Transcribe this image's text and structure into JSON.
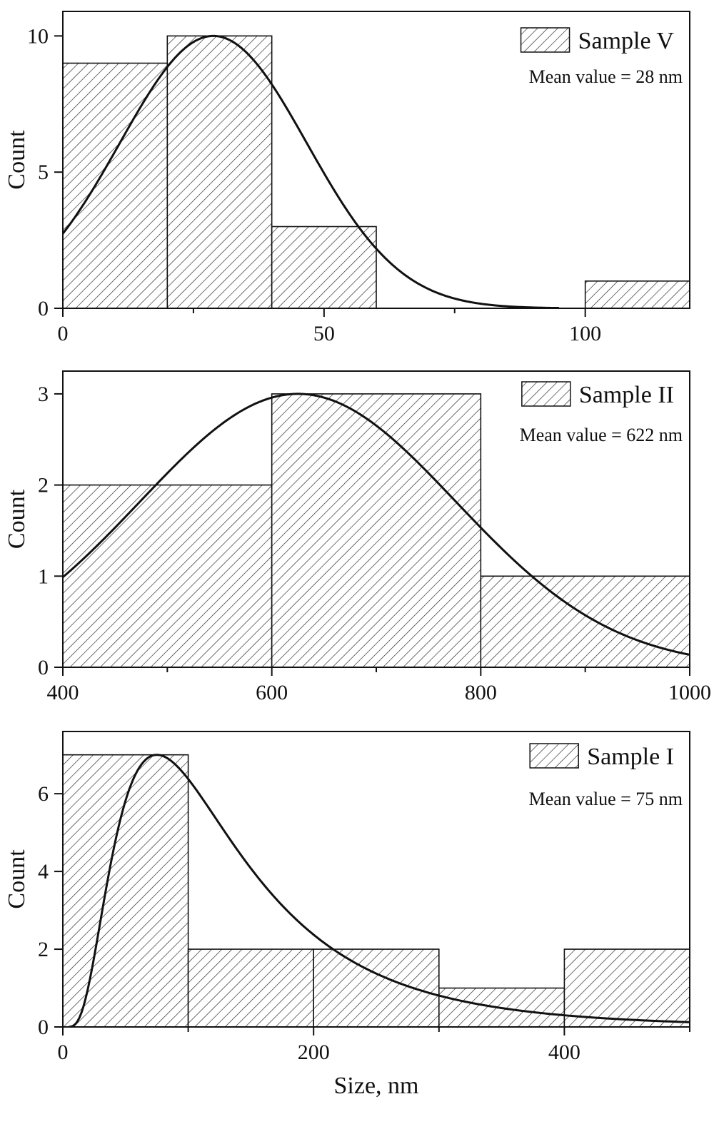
{
  "chart_data": [
    {
      "type": "bar",
      "name": "sample-v",
      "legend": "Sample V",
      "annotation": "Mean value = 28 nm",
      "ylabel": "Count",
      "xlabel": "",
      "xlim": [
        0,
        120
      ],
      "ylim": [
        0,
        10.9
      ],
      "xticks": [
        0,
        50,
        100
      ],
      "xtick_labels": [
        "0",
        "50",
        "100"
      ],
      "xminor": [
        25,
        75
      ],
      "yticks": [
        0,
        5,
        10
      ],
      "ytick_labels": [
        "0",
        "5",
        "10"
      ],
      "bins": [
        {
          "x0": 0,
          "x1": 20,
          "count": 9
        },
        {
          "x0": 20,
          "x1": 40,
          "count": 10
        },
        {
          "x0": 40,
          "x1": 60,
          "count": 3
        },
        {
          "x0": 100,
          "x1": 120,
          "count": 1
        }
      ],
      "fit": {
        "type": "gaussian",
        "peak_x": 28.8,
        "peak_y": 10,
        "sigma": 17.9,
        "x_range": [
          0,
          95
        ]
      }
    },
    {
      "type": "bar",
      "name": "sample-ii",
      "legend": "Sample II",
      "annotation": "Mean value = 622 nm",
      "ylabel": "Count",
      "xlabel": "",
      "xlim": [
        400,
        1000
      ],
      "ylim": [
        0,
        3.25
      ],
      "xticks": [
        400,
        600,
        800,
        1000
      ],
      "xtick_labels": [
        "400",
        "600",
        "800",
        "1000"
      ],
      "xminor": [
        500,
        700,
        900
      ],
      "yticks": [
        0,
        1,
        2,
        3
      ],
      "ytick_labels": [
        "0",
        "1",
        "2",
        "3"
      ],
      "bins": [
        {
          "x0": 400,
          "x1": 600,
          "count": 2
        },
        {
          "x0": 600,
          "x1": 800,
          "count": 3
        },
        {
          "x0": 800,
          "x1": 1000,
          "count": 1
        }
      ],
      "fit": {
        "type": "gaussian",
        "peak_x": 625,
        "peak_y": 3,
        "sigma": 151,
        "x_range": [
          400,
          1000
        ]
      }
    },
    {
      "type": "bar",
      "name": "sample-i",
      "legend": "Sample I",
      "annotation": "Mean value = 75 nm",
      "ylabel": "Count",
      "xlabel": "Size, nm",
      "xlim": [
        0,
        500
      ],
      "ylim": [
        0,
        7.6
      ],
      "xticks": [
        0,
        200,
        400
      ],
      "xtick_labels": [
        "0",
        "200",
        "400"
      ],
      "xminor": [
        100,
        300,
        500
      ],
      "yticks": [
        0,
        2,
        4,
        6
      ],
      "ytick_labels": [
        "0",
        "2",
        "4",
        "6"
      ],
      "bins": [
        {
          "x0": 0,
          "x1": 100,
          "count": 7
        },
        {
          "x0": 100,
          "x1": 200,
          "count": 2
        },
        {
          "x0": 200,
          "x1": 300,
          "count": 2
        },
        {
          "x0": 300,
          "x1": 400,
          "count": 1
        },
        {
          "x0": 400,
          "x1": 500,
          "count": 2
        }
      ],
      "fit": {
        "type": "lognormal",
        "peak_x": 75,
        "peak_y": 7,
        "median": 117,
        "sigma": 0.667,
        "x_range": [
          5,
          500
        ]
      }
    }
  ]
}
